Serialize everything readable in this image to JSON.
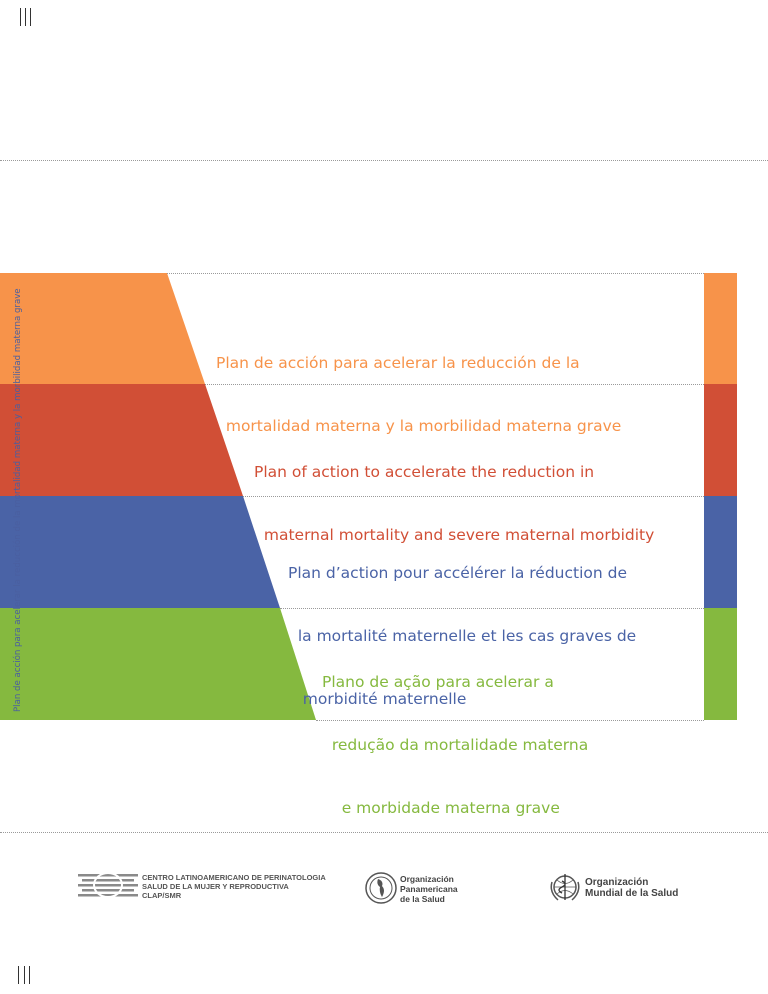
{
  "side_title": "Plan de acción para acelerar la reducción de la mortalidad materna y la morbilidad materna grave",
  "bands": [
    {
      "lines": [
        "Plan de acción para acelerar la reducción de la",
        "  mortalidad materna y la morbilidad materna grave"
      ],
      "color": "#f7934a"
    },
    {
      "lines": [
        "Plan of action to accelerate the reduction in",
        "  maternal mortality and severe maternal morbidity"
      ],
      "color": "#d14f36"
    },
    {
      "lines": [
        "Plan d’action pour accélérer la réduction de",
        "  la mortalité maternelle et les cas graves de",
        "   morbidité maternelle"
      ],
      "color": "#4a63a6"
    },
    {
      "lines": [
        "Plano de ação para acelerar a",
        "  redução da mortalidade materna",
        "    e morbidade materna grave"
      ],
      "color": "#85b93f"
    }
  ],
  "footer": {
    "clap": [
      "CENTRO LATINOAMERICANO DE PERINATOLOGIA",
      "SALUD DE LA MUJER Y REPRODUCTIVA",
      "CLAP/SMR"
    ],
    "ops": [
      "Organización",
      "Panamericana",
      "de la Salud"
    ],
    "oms": [
      "Organización",
      "Mundial de la Salud"
    ]
  }
}
